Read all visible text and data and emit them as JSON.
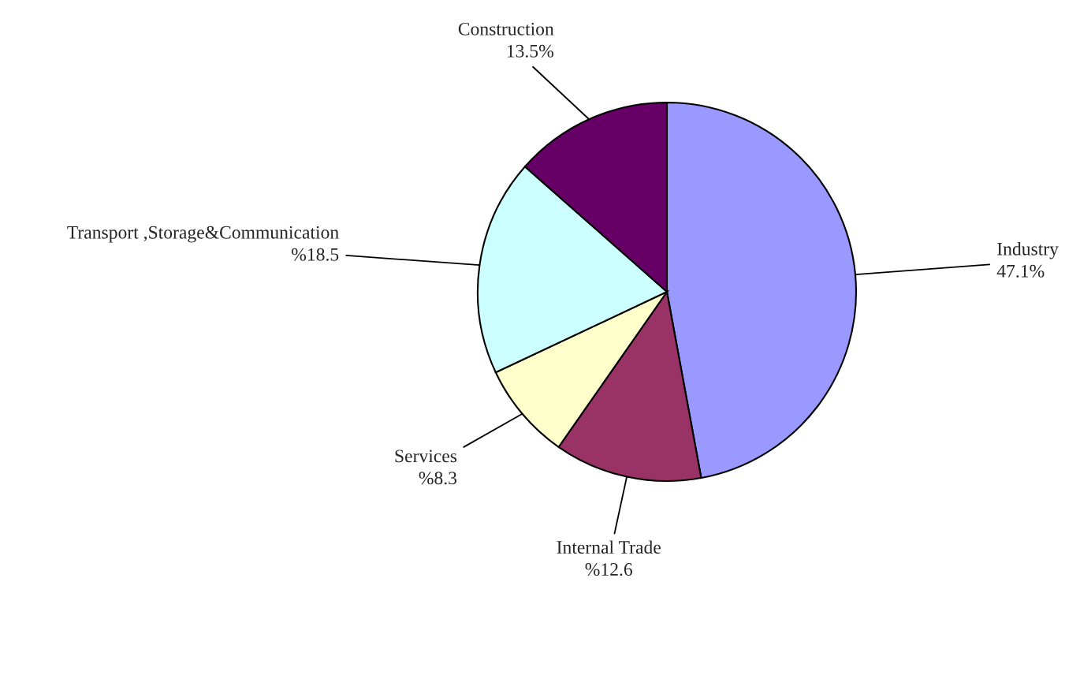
{
  "chart_data": {
    "type": "pie",
    "categories": [
      "Industry",
      "Internal Trade",
      "Services",
      "Transport ,Storage&Communication",
      "Construction"
    ],
    "values": [
      47.1,
      12.6,
      8.3,
      18.5,
      13.5
    ],
    "value_labels": [
      "47.1%",
      "%12.6",
      "%8.3",
      "%18.5",
      "13.5%"
    ],
    "colors": [
      "#9999ff",
      "#993366",
      "#ffffcc",
      "#ccffff",
      "#660066"
    ],
    "legend": false
  }
}
